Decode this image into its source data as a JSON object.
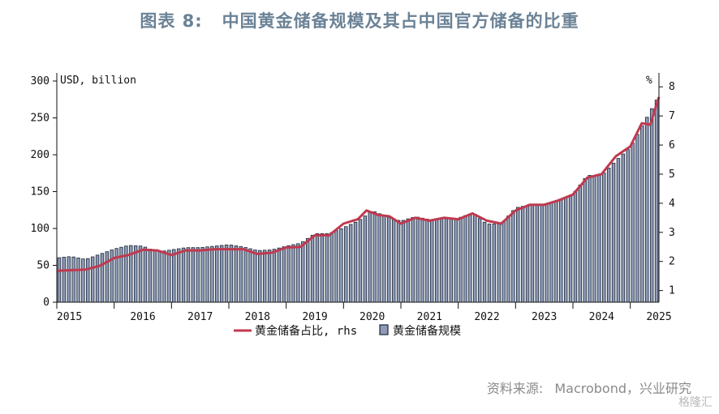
{
  "title": {
    "label": "图表 8:",
    "text": "中国黄金储备规模及其占中国官方储备的比重"
  },
  "source": {
    "label": "资料来源:",
    "text": "Macrobond，兴业研究"
  },
  "watermark": "格隆汇",
  "colors": {
    "bar_fill": "#8d9bb6",
    "bar_stroke": "#1c2538",
    "line": "#c0394f",
    "axis": "#111111"
  },
  "chart_data": {
    "type": "bar",
    "combo": "bar + line (secondary axis)",
    "ylabel_left": "USD, billion",
    "ylabel_right": "%",
    "ylim_left": [
      0,
      300
    ],
    "ylim_right": [
      0.6,
      8.2
    ],
    "yticks_left": [
      0,
      50,
      100,
      150,
      200,
      250,
      300
    ],
    "yticks_right": [
      1,
      2,
      3,
      4,
      5,
      6,
      7,
      8
    ],
    "x_range": [
      2015.0,
      2025.5
    ],
    "x_tick_labels": [
      "2015",
      "2016",
      "2017",
      "2018",
      "2019",
      "2020",
      "2021",
      "2022",
      "2023",
      "2024",
      "2025"
    ],
    "grid": false,
    "legend_position": "bottom",
    "series": [
      {
        "name": "黄金储备占比, rhs",
        "type": "line",
        "axis": "right",
        "points": [
          [
            2015.0,
            1.68
          ],
          [
            2015.25,
            1.7
          ],
          [
            2015.5,
            1.72
          ],
          [
            2015.75,
            1.85
          ],
          [
            2016.0,
            2.12
          ],
          [
            2016.25,
            2.22
          ],
          [
            2016.5,
            2.4
          ],
          [
            2016.75,
            2.38
          ],
          [
            2017.0,
            2.22
          ],
          [
            2017.25,
            2.38
          ],
          [
            2017.5,
            2.38
          ],
          [
            2017.75,
            2.42
          ],
          [
            2018.0,
            2.42
          ],
          [
            2018.25,
            2.42
          ],
          [
            2018.5,
            2.26
          ],
          [
            2018.75,
            2.3
          ],
          [
            2019.0,
            2.48
          ],
          [
            2019.25,
            2.5
          ],
          [
            2019.5,
            2.9
          ],
          [
            2019.75,
            2.9
          ],
          [
            2020.0,
            3.3
          ],
          [
            2020.25,
            3.45
          ],
          [
            2020.4,
            3.75
          ],
          [
            2020.6,
            3.6
          ],
          [
            2020.8,
            3.55
          ],
          [
            2021.0,
            3.3
          ],
          [
            2021.25,
            3.5
          ],
          [
            2021.5,
            3.4
          ],
          [
            2021.75,
            3.5
          ],
          [
            2022.0,
            3.45
          ],
          [
            2022.25,
            3.65
          ],
          [
            2022.5,
            3.4
          ],
          [
            2022.75,
            3.3
          ],
          [
            2023.0,
            3.75
          ],
          [
            2023.25,
            3.95
          ],
          [
            2023.5,
            3.95
          ],
          [
            2023.75,
            4.1
          ],
          [
            2024.0,
            4.3
          ],
          [
            2024.25,
            4.88
          ],
          [
            2024.5,
            5.0
          ],
          [
            2024.75,
            5.62
          ],
          [
            2025.0,
            5.95
          ],
          [
            2025.2,
            6.75
          ],
          [
            2025.35,
            6.7
          ],
          [
            2025.45,
            7.35
          ],
          [
            2025.5,
            7.65
          ]
        ]
      },
      {
        "name": "黄金储备规模",
        "type": "bar",
        "axis": "left",
        "points": [
          [
            2015.0,
            60
          ],
          [
            2015.25,
            62
          ],
          [
            2015.5,
            58
          ],
          [
            2015.75,
            65
          ],
          [
            2016.0,
            72
          ],
          [
            2016.25,
            77
          ],
          [
            2016.5,
            76
          ],
          [
            2016.75,
            68
          ],
          [
            2017.0,
            71
          ],
          [
            2017.25,
            74
          ],
          [
            2017.5,
            74
          ],
          [
            2017.75,
            76
          ],
          [
            2018.0,
            78
          ],
          [
            2018.25,
            75
          ],
          [
            2018.5,
            70
          ],
          [
            2018.75,
            71
          ],
          [
            2019.0,
            76
          ],
          [
            2019.25,
            80
          ],
          [
            2019.5,
            93
          ],
          [
            2019.75,
            93
          ],
          [
            2020.0,
            101
          ],
          [
            2020.25,
            110
          ],
          [
            2020.5,
            124
          ],
          [
            2020.75,
            116
          ],
          [
            2021.0,
            110
          ],
          [
            2021.25,
            116
          ],
          [
            2021.5,
            112
          ],
          [
            2021.75,
            113
          ],
          [
            2022.0,
            114
          ],
          [
            2022.25,
            121
          ],
          [
            2022.5,
            106
          ],
          [
            2022.75,
            106
          ],
          [
            2023.0,
            128
          ],
          [
            2023.25,
            132
          ],
          [
            2023.5,
            133
          ],
          [
            2023.75,
            138
          ],
          [
            2024.0,
            146
          ],
          [
            2024.25,
            172
          ],
          [
            2024.5,
            172
          ],
          [
            2024.75,
            192
          ],
          [
            2025.0,
            210
          ],
          [
            2025.25,
            245
          ],
          [
            2025.5,
            280
          ]
        ]
      }
    ]
  }
}
